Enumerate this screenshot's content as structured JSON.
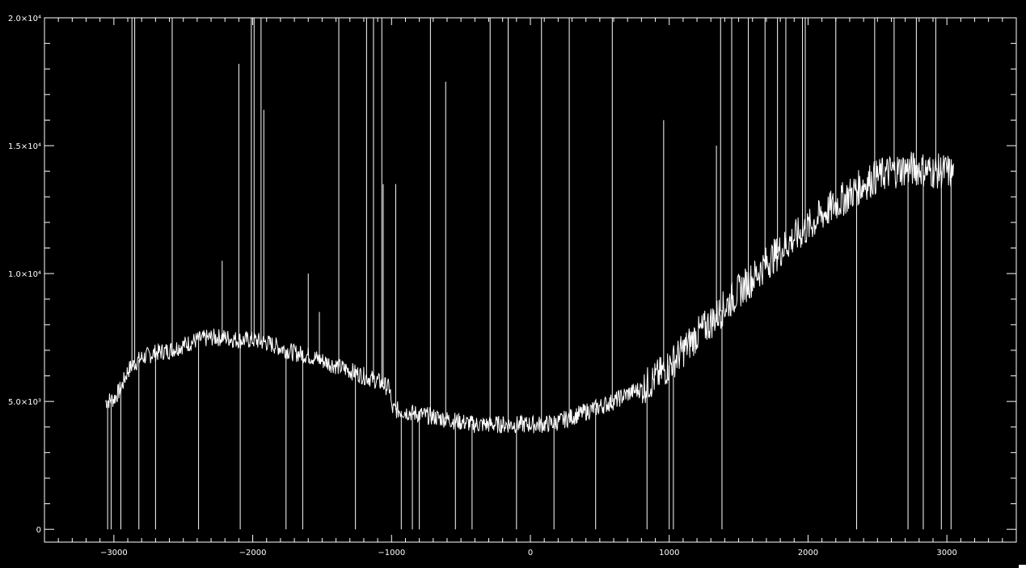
{
  "chart_data": {
    "type": "line",
    "title": "",
    "xlabel": "",
    "ylabel": "",
    "xlim": [
      -3500,
      3500
    ],
    "ylim": [
      -500,
      20000
    ],
    "x_ticks": [
      {
        "value": -3000,
        "label": "−3000"
      },
      {
        "value": -2000,
        "label": "−2000"
      },
      {
        "value": -1000,
        "label": "−1000"
      },
      {
        "value": 0,
        "label": "0"
      },
      {
        "value": 1000,
        "label": "1000"
      },
      {
        "value": 2000,
        "label": "2000"
      },
      {
        "value": 3000,
        "label": "3000"
      }
    ],
    "y_ticks": [
      {
        "value": 0,
        "label": "0"
      },
      {
        "value": 5000,
        "label": "5.0×10³"
      },
      {
        "value": 10000,
        "label": "1.0×10⁴"
      },
      {
        "value": 15000,
        "label": "1.5×10⁴"
      },
      {
        "value": 20000,
        "label": "2.0×10⁴"
      }
    ],
    "x_minor_step": 100,
    "y_minor_step": 1000,
    "grid": false,
    "colors": {
      "background": "#000000",
      "line": "#ffffff",
      "axes": "#ffffff"
    },
    "series": [
      {
        "x": [
          -3060,
          -3000,
          -2950,
          -2900,
          -2850,
          -2800,
          -2700,
          -2600,
          -2500,
          -2400,
          -2300,
          -2200,
          -2100,
          -2000,
          -1900,
          -1800,
          -1700,
          -1600,
          -1500,
          -1400,
          -1300,
          -1200,
          -1100,
          -1010,
          -1000,
          -900,
          -800,
          -700,
          -600,
          -500,
          -400,
          -300,
          -200,
          -100,
          0,
          100,
          200,
          300,
          400,
          500,
          600,
          700,
          800,
          900,
          1000,
          1100,
          1200,
          1300,
          1400,
          1500,
          1600,
          1700,
          1800,
          1900,
          2000,
          2100,
          2200,
          2300,
          2400,
          2500,
          2600,
          2700,
          2800,
          2900,
          3000,
          3050
        ],
        "y": [
          5000,
          5100,
          5500,
          6200,
          6500,
          6700,
          6900,
          7000,
          7200,
          7400,
          7500,
          7500,
          7400,
          7400,
          7300,
          7100,
          6900,
          6800,
          6600,
          6400,
          6200,
          6000,
          5800,
          5500,
          4700,
          4600,
          4500,
          4400,
          4300,
          4200,
          4100,
          4100,
          4100,
          4100,
          4100,
          4100,
          4200,
          4400,
          4600,
          4800,
          5000,
          5300,
          5500,
          5900,
          6400,
          7000,
          7600,
          8100,
          8700,
          9300,
          9800,
          10400,
          10900,
          11400,
          11800,
          12300,
          12700,
          13100,
          13500,
          13800,
          14000,
          14100,
          14100,
          14000,
          14000,
          13900
        ]
      }
    ],
    "spikes": [
      {
        "x": -3045,
        "y": 0
      },
      {
        "x": -3020,
        "y": 0
      },
      {
        "x": -2950,
        "y": 0
      },
      {
        "x": -2870,
        "y": 20000
      },
      {
        "x": -2850,
        "y": 20000
      },
      {
        "x": -2820,
        "y": 0
      },
      {
        "x": -2700,
        "y": 0
      },
      {
        "x": -2580,
        "y": 20000
      },
      {
        "x": -2390,
        "y": 0
      },
      {
        "x": -2220,
        "y": 10500
      },
      {
        "x": -2100,
        "y": 18200
      },
      {
        "x": -2090,
        "y": 0
      },
      {
        "x": -2010,
        "y": 20000
      },
      {
        "x": -1990,
        "y": 20000
      },
      {
        "x": -1940,
        "y": 20000
      },
      {
        "x": -1920,
        "y": 16400
      },
      {
        "x": -1760,
        "y": 0
      },
      {
        "x": -1640,
        "y": 0
      },
      {
        "x": -1600,
        "y": 10000
      },
      {
        "x": -1520,
        "y": 8500
      },
      {
        "x": -1380,
        "y": 20000
      },
      {
        "x": -1260,
        "y": 0
      },
      {
        "x": -1180,
        "y": 20000
      },
      {
        "x": -1130,
        "y": 20000
      },
      {
        "x": -1070,
        "y": 20000
      },
      {
        "x": -1060,
        "y": 13500
      },
      {
        "x": -970,
        "y": 13500
      },
      {
        "x": -930,
        "y": 0
      },
      {
        "x": -850,
        "y": 0
      },
      {
        "x": -800,
        "y": 0
      },
      {
        "x": -720,
        "y": 20000
      },
      {
        "x": -610,
        "y": 17500
      },
      {
        "x": -540,
        "y": 0
      },
      {
        "x": -420,
        "y": 0
      },
      {
        "x": -290,
        "y": 20000
      },
      {
        "x": -160,
        "y": 20000
      },
      {
        "x": -100,
        "y": 0
      },
      {
        "x": 80,
        "y": 20000
      },
      {
        "x": 170,
        "y": 0
      },
      {
        "x": 280,
        "y": 20000
      },
      {
        "x": 470,
        "y": 0
      },
      {
        "x": 590,
        "y": 20000
      },
      {
        "x": 840,
        "y": 0
      },
      {
        "x": 960,
        "y": 16000
      },
      {
        "x": 1000,
        "y": 0
      },
      {
        "x": 1030,
        "y": 0
      },
      {
        "x": 1340,
        "y": 15000
      },
      {
        "x": 1380,
        "y": 0
      },
      {
        "x": 1370,
        "y": 20000
      },
      {
        "x": 1450,
        "y": 20000
      },
      {
        "x": 1570,
        "y": 20000
      },
      {
        "x": 1690,
        "y": 20000
      },
      {
        "x": 1780,
        "y": 20000
      },
      {
        "x": 1840,
        "y": 20000
      },
      {
        "x": 1960,
        "y": 20000
      },
      {
        "x": 1980,
        "y": 20000
      },
      {
        "x": 2200,
        "y": 20000
      },
      {
        "x": 2350,
        "y": 0
      },
      {
        "x": 2480,
        "y": 20000
      },
      {
        "x": 2620,
        "y": 20000
      },
      {
        "x": 2720,
        "y": 0
      },
      {
        "x": 2780,
        "y": 20000
      },
      {
        "x": 2830,
        "y": 0
      },
      {
        "x": 2920,
        "y": 20000
      },
      {
        "x": 2960,
        "y": 0
      },
      {
        "x": 3030,
        "y": 0
      }
    ]
  }
}
